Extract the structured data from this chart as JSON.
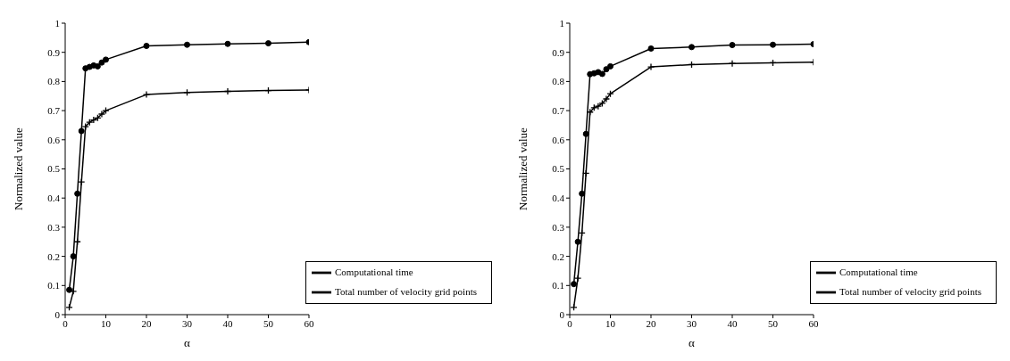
{
  "chart_data": [
    {
      "type": "line",
      "xlabel": "α",
      "ylabel": "Normalized value",
      "x": [
        1,
        2,
        3,
        4,
        5,
        6,
        7,
        8,
        9,
        10,
        20,
        30,
        40,
        50,
        60
      ],
      "xlim": [
        0,
        60
      ],
      "xticks": [
        0,
        10,
        20,
        30,
        40,
        50,
        60
      ],
      "ylim": [
        0,
        1
      ],
      "yticks": [
        0,
        0.1,
        0.2,
        0.3,
        0.4,
        0.5,
        0.6,
        0.7,
        0.8,
        0.9,
        1
      ],
      "grid": false,
      "legend": "bottom right",
      "line_style": "solid",
      "series": [
        {
          "name": "Computational time",
          "color": "#000000",
          "marker": "circle",
          "values": [
            0.085,
            0.2,
            0.415,
            0.63,
            0.845,
            0.85,
            0.855,
            0.852,
            0.865,
            0.875,
            0.922,
            0.926,
            0.929,
            0.931,
            0.935
          ]
        },
        {
          "name": "Total number of velocity grid points",
          "color": "#000000",
          "marker": "cross",
          "values": [
            0.025,
            0.08,
            0.25,
            0.455,
            0.645,
            0.66,
            0.668,
            0.675,
            0.688,
            0.7,
            0.755,
            0.762,
            0.766,
            0.769,
            0.771
          ]
        }
      ]
    },
    {
      "type": "line",
      "xlabel": "α",
      "ylabel": "Normalized value",
      "x": [
        1,
        2,
        3,
        4,
        5,
        6,
        7,
        8,
        9,
        10,
        20,
        30,
        40,
        50,
        60
      ],
      "xlim": [
        0,
        60
      ],
      "xticks": [
        0,
        10,
        20,
        30,
        40,
        50,
        60
      ],
      "ylim": [
        0,
        1
      ],
      "yticks": [
        0,
        0.1,
        0.2,
        0.3,
        0.4,
        0.5,
        0.6,
        0.7,
        0.8,
        0.9,
        1
      ],
      "grid": false,
      "legend": "bottom right",
      "line_style": "solid",
      "series": [
        {
          "name": "Computational time",
          "color": "#000000",
          "marker": "circle",
          "values": [
            0.105,
            0.25,
            0.415,
            0.62,
            0.825,
            0.828,
            0.832,
            0.826,
            0.842,
            0.852,
            0.913,
            0.918,
            0.925,
            0.926,
            0.928
          ]
        },
        {
          "name": "Total number of velocity grid points",
          "color": "#000000",
          "marker": "cross",
          "values": [
            0.025,
            0.125,
            0.28,
            0.485,
            0.695,
            0.71,
            0.715,
            0.725,
            0.74,
            0.758,
            0.85,
            0.858,
            0.862,
            0.864,
            0.866
          ]
        }
      ]
    }
  ]
}
